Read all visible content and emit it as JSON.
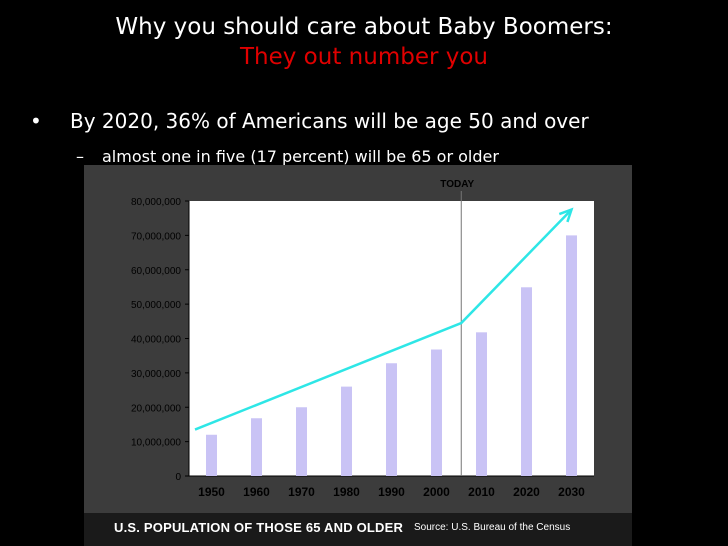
{
  "slide": {
    "title_line1": "Why you should care about Baby Boomers:",
    "title_line2": "They out number you",
    "bullet": "By 2020, 36% of Americans will be age 50 and over",
    "sub_bullet": "almost one in five (17 percent) will be 65 or older",
    "bullet_marker": "•",
    "sub_marker": "–"
  },
  "colors": {
    "accent": "#e00000",
    "bar": "#c9c3f5",
    "trend": "#2ee6e6",
    "chart_bg": "#ffffff",
    "figure_bg": "#3c3c3c"
  },
  "chart_data": {
    "type": "bar",
    "categories": [
      "1950",
      "1960",
      "1970",
      "1980",
      "1990",
      "2000",
      "2010",
      "2020",
      "2030"
    ],
    "values": [
      12000000,
      16800000,
      20000000,
      26000000,
      32800000,
      36800000,
      41800000,
      54900000,
      70000000
    ],
    "ylim": [
      0,
      80000000
    ],
    "yticks": [
      0,
      10000000,
      20000000,
      30000000,
      40000000,
      50000000,
      60000000,
      70000000,
      80000000
    ],
    "ytick_labels": [
      "0",
      "10,000,000",
      "20,000,000",
      "30,000,000",
      "40,000,000",
      "50,000,000",
      "60,000,000",
      "70,000,000",
      "80,000,000"
    ],
    "marker_label": "TODAY",
    "marker_category": "2010",
    "trend_arrow": {
      "x": [
        "1950",
        "2010",
        "2030"
      ],
      "y": [
        13500000,
        44500000,
        77500000
      ]
    },
    "grid": false,
    "caption": "U.S. POPULATION OF THOSE 65 AND OLDER",
    "source": "Source: U.S. Bureau of the Census"
  }
}
